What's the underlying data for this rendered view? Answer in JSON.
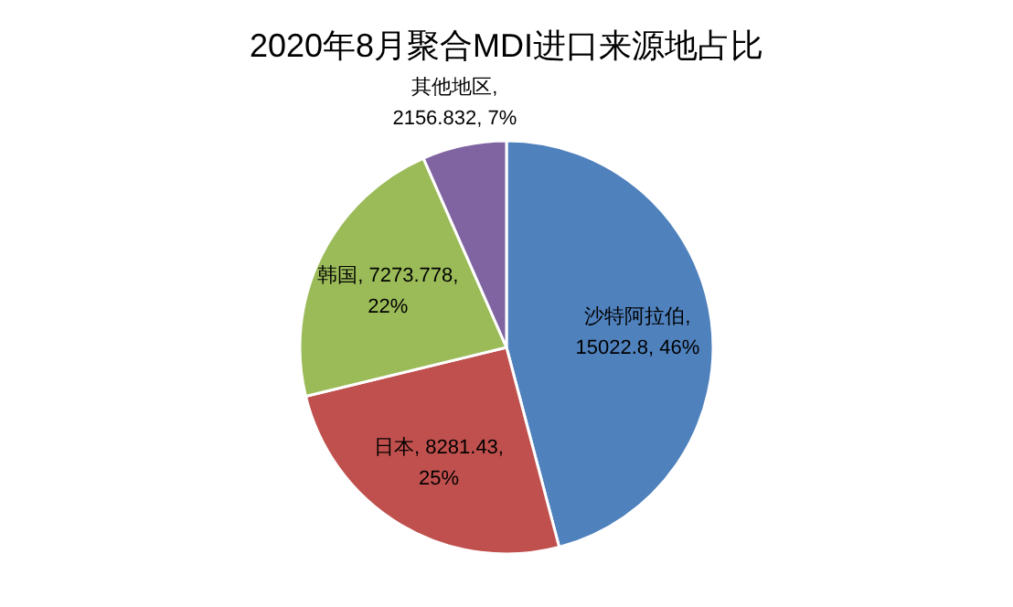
{
  "chart_data": {
    "type": "pie",
    "title": "2020年8月聚合MDI进口来源地占比",
    "categories": [
      "沙特阿拉伯",
      "日本",
      "韩国",
      "其他地区"
    ],
    "values": [
      15022.8,
      8281.43,
      7273.778,
      2156.832
    ],
    "colors": [
      "#4f81bd",
      "#c0504d",
      "#9bbb59",
      "#8064a2"
    ],
    "value_labels": [
      ", 15022.8, 46%",
      ", 8281.43, 25%",
      ", 7273.778, 22%",
      ", 2156.832, 7%"
    ]
  }
}
